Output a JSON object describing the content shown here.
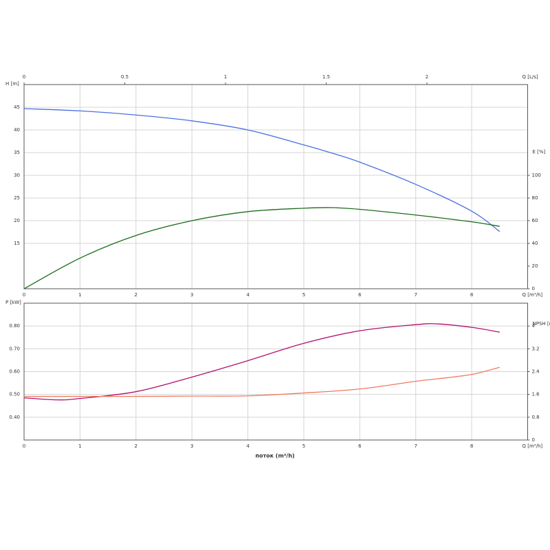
{
  "chart_data": [
    {
      "type": "line",
      "x": [
        0,
        1,
        2,
        3,
        4,
        5,
        5.5,
        6,
        7,
        8,
        8.5
      ],
      "series": [
        {
          "name": "H",
          "color": "#4a6fe0",
          "values": [
            44.7,
            44.2,
            43.3,
            42,
            40,
            36.7,
            34.9,
            32.9,
            28,
            22.1,
            17.6
          ]
        },
        {
          "name": "E",
          "color": "#1a6b1a",
          "axis": "y2",
          "values": [
            0,
            27,
            47,
            60,
            68,
            71,
            71.5,
            70,
            65,
            59,
            55
          ]
        }
      ],
      "xlim": [
        0,
        9
      ],
      "xticks": [
        0,
        1,
        2,
        3,
        4,
        5,
        6,
        7,
        8
      ],
      "x_label": "Q [m³/h]",
      "x2lim": [
        0,
        2.5
      ],
      "x2ticks": [
        0,
        0.5,
        1,
        1.5,
        2
      ],
      "x2_label": "Q [L/s]",
      "ylim": [
        5,
        50
      ],
      "yticks": [
        15,
        20,
        25,
        30,
        35,
        40,
        45
      ],
      "y_label": "H [m]",
      "y2lim": [
        0,
        180
      ],
      "y2ticks": [
        0,
        20,
        40,
        60,
        80,
        100
      ],
      "y2_label": "E [%]",
      "grid": true
    },
    {
      "type": "line",
      "x": [
        0,
        0.6,
        1,
        2,
        3,
        4,
        5,
        6,
        7,
        7.4,
        8,
        8.5
      ],
      "series": [
        {
          "name": "P",
          "color": "#b0106e",
          "values": [
            0.485,
            0.476,
            0.482,
            0.512,
            0.576,
            0.648,
            0.724,
            0.779,
            0.806,
            0.809,
            0.794,
            0.773
          ]
        },
        {
          "name": "NPSH",
          "color": "#f07860",
          "axis": "y2",
          "values": [
            1.53,
            1.53,
            1.53,
            1.53,
            1.54,
            1.55,
            1.65,
            1.79,
            2.06,
            2.15,
            2.3,
            2.55
          ]
        }
      ],
      "xlim": [
        0,
        9
      ],
      "xticks": [
        0,
        1,
        2,
        3,
        4,
        5,
        6,
        7,
        8
      ],
      "x_label": "Q [m³/h]",
      "x_title": "поток (m³/h)",
      "ylim": [
        0.3,
        0.9
      ],
      "yticks": [
        {
          "value": 0.4,
          "label": "0.40"
        },
        {
          "value": 0.5,
          "label": "0.50"
        },
        {
          "value": 0.6,
          "label": "0.60"
        },
        {
          "value": 0.7,
          "label": "0.70"
        },
        {
          "value": 0.8,
          "label": "0.80"
        }
      ],
      "y_label": "P [kW]",
      "y2lim": [
        0,
        4.8
      ],
      "y2ticks": [
        0,
        0.8,
        1.6,
        2.4,
        3.2,
        4
      ],
      "y2_label": "NPSH [m]",
      "grid": true
    }
  ]
}
